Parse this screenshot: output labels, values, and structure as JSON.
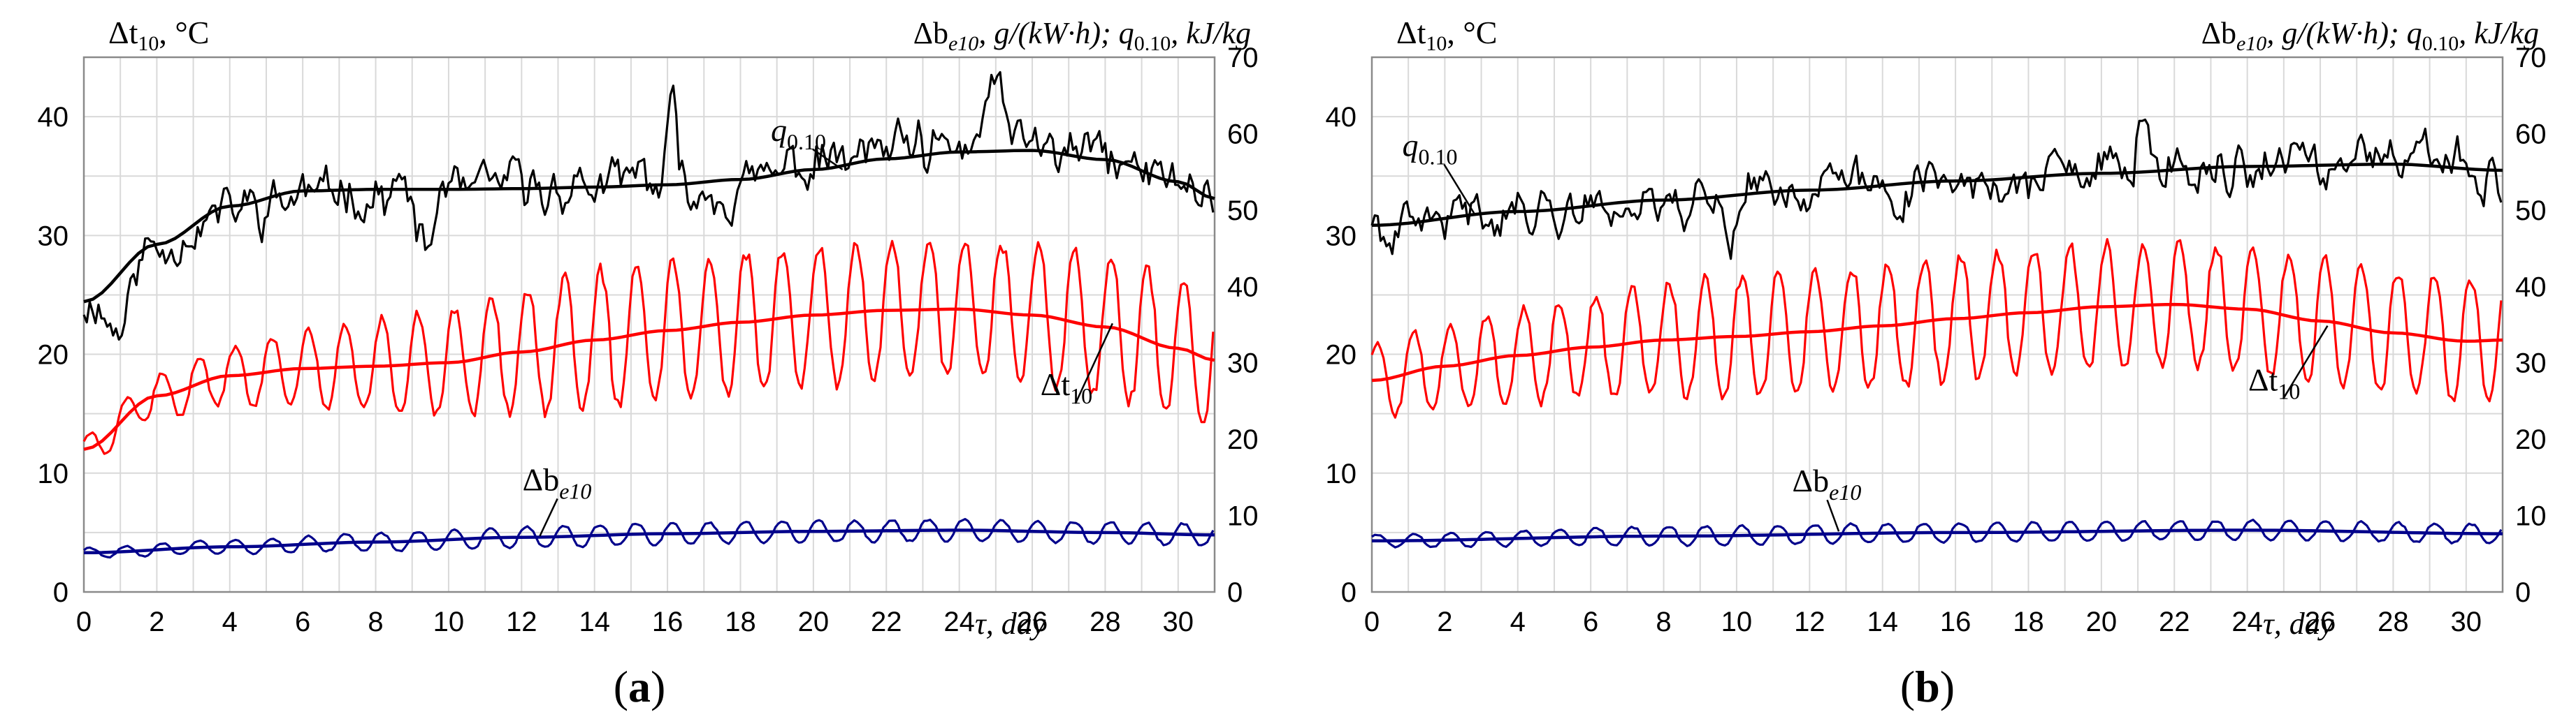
{
  "chart_data": [
    {
      "type": "line",
      "panel": "a",
      "panel_label": "a",
      "left_axis": {
        "symbol": "Δt",
        "sub": "10",
        "unit": ", °C",
        "ylim": [
          0,
          45
        ],
        "ticks": [
          0,
          10,
          20,
          30,
          40
        ]
      },
      "right_axis": {
        "label_parts": [
          "Δb",
          "e10",
          ", g/(kW·h); q",
          "0.10",
          ", kJ/kg"
        ],
        "ylim": [
          0,
          70
        ],
        "ticks": [
          0,
          10,
          20,
          30,
          40,
          50,
          60,
          70
        ]
      },
      "x_axis": {
        "label": "τ, day",
        "xlim": [
          0,
          31
        ],
        "ticks": [
          0,
          2,
          4,
          6,
          8,
          10,
          12,
          14,
          16,
          18,
          20,
          22,
          24,
          26,
          28,
          30
        ]
      },
      "series": [
        {
          "name": "q0.10",
          "label_main": "q",
          "label_sub": "0.10",
          "axis": "right",
          "color": "#000000",
          "trend": [
            [
              0,
              38
            ],
            [
              2,
              45.5
            ],
            [
              4,
              50.5
            ],
            [
              6,
              52.5
            ],
            [
              8,
              52.7
            ],
            [
              10,
              52.7
            ],
            [
              12,
              52.8
            ],
            [
              14,
              53
            ],
            [
              16,
              53.3
            ],
            [
              18,
              54
            ],
            [
              20,
              55.3
            ],
            [
              22,
              56.7
            ],
            [
              24,
              57.6
            ],
            [
              26,
              57.8
            ],
            [
              28,
              56.6
            ],
            [
              30,
              53.7
            ],
            [
              31,
              51.5
            ]
          ],
          "noise": {
            "amp": 4.2,
            "seed": 11,
            "extra": [
              [
                0.4,
                1.5,
                -6
              ],
              [
                8.9,
                9.8,
                -9
              ],
              [
                15.9,
                16.3,
                10
              ],
              [
                24.6,
                25.4,
                11
              ],
              [
                22.9,
                23.3,
                -5
              ]
            ]
          }
        },
        {
          "name": "Δt10",
          "label_main": "Δt",
          "label_sub": "10",
          "axis": "left",
          "color": "#ff0000",
          "trend": [
            [
              0,
              12
            ],
            [
              2,
              16.5
            ],
            [
              4,
              18.2
            ],
            [
              6,
              18.8
            ],
            [
              8,
              19
            ],
            [
              10,
              19.3
            ],
            [
              12,
              20.2
            ],
            [
              14,
              21.2
            ],
            [
              16,
              22
            ],
            [
              18,
              22.7
            ],
            [
              20,
              23.3
            ],
            [
              22,
              23.7
            ],
            [
              24,
              23.8
            ],
            [
              26,
              23.3
            ],
            [
              28,
              22.3
            ],
            [
              30,
              20.5
            ],
            [
              31,
              19.5
            ]
          ],
          "osc": {
            "period": 1,
            "amp_start": 1.2,
            "amp_end": 5.8,
            "ramp_days": 14,
            "seed": 21
          }
        },
        {
          "name": "Δbe10",
          "label_main": "Δb",
          "label_sub": "e10",
          "axis": "left",
          "color": "#00008b",
          "trend": [
            [
              0,
              3.3
            ],
            [
              4,
              3.8
            ],
            [
              8,
              4.2
            ],
            [
              12,
              4.6
            ],
            [
              16,
              4.9
            ],
            [
              20,
              5.1
            ],
            [
              24,
              5.2
            ],
            [
              28,
              5.0
            ],
            [
              31,
              4.8
            ]
          ],
          "osc": {
            "period": 1,
            "amp_start": 0.4,
            "amp_end": 0.9,
            "ramp_days": 12,
            "seed": 31
          }
        }
      ]
    },
    {
      "type": "line",
      "panel": "b",
      "panel_label": "b",
      "left_axis": {
        "symbol": "Δt",
        "sub": "10",
        "unit": ", °C",
        "ylim": [
          0,
          45
        ],
        "ticks": [
          0,
          10,
          20,
          30,
          40
        ]
      },
      "right_axis": {
        "label_parts": [
          "Δb",
          "e10",
          ", g/(kW·h); q",
          "0.10",
          ", kJ/kg"
        ],
        "ylim": [
          0,
          70
        ],
        "ticks": [
          0,
          10,
          20,
          30,
          40,
          50,
          60,
          70
        ]
      },
      "x_axis": {
        "label": "τ, day",
        "xlim": [
          0,
          31
        ],
        "ticks": [
          0,
          2,
          4,
          6,
          8,
          10,
          12,
          14,
          16,
          18,
          20,
          22,
          24,
          26,
          28,
          30
        ]
      },
      "series": [
        {
          "name": "q0.10",
          "label_main": "q",
          "label_sub": "0.10",
          "axis": "right",
          "color": "#000000",
          "trend": [
            [
              0,
              48
            ],
            [
              4,
              49.8
            ],
            [
              8,
              51.3
            ],
            [
              12,
              52.6
            ],
            [
              16,
              53.8
            ],
            [
              20,
              54.8
            ],
            [
              24,
              55.7
            ],
            [
              28,
              56
            ],
            [
              31,
              55.2
            ]
          ],
          "noise": {
            "amp": 3.8,
            "seed": 41,
            "extra": [
              [
                0.3,
                0.9,
                -5
              ],
              [
                9.6,
                10.1,
                -5
              ],
              [
                20.9,
                21.4,
                7
              ],
              [
                23.3,
                23.7,
                -5
              ]
            ]
          }
        },
        {
          "name": "Δt10",
          "label_main": "Δt",
          "label_sub": "10",
          "axis": "left",
          "color": "#ff0000",
          "trend": [
            [
              0,
              17.8
            ],
            [
              2,
              19
            ],
            [
              4,
              19.9
            ],
            [
              6,
              20.6
            ],
            [
              8,
              21.2
            ],
            [
              10,
              21.5
            ],
            [
              12,
              21.9
            ],
            [
              14,
              22.4
            ],
            [
              16,
              23
            ],
            [
              18,
              23.5
            ],
            [
              20,
              24
            ],
            [
              22,
              24.2
            ],
            [
              24,
              23.8
            ],
            [
              26,
              22.8
            ],
            [
              28,
              21.8
            ],
            [
              30,
              21.1
            ],
            [
              31,
              21.2
            ]
          ],
          "osc": {
            "period": 1,
            "amp_start": 3,
            "amp_end": 5.2,
            "ramp_days": 10,
            "seed": 51
          }
        },
        {
          "name": "Δbe10",
          "label_main": "Δb",
          "label_sub": "e10",
          "axis": "left",
          "color": "#00008b",
          "trend": [
            [
              0,
              4.3
            ],
            [
              8,
              4.7
            ],
            [
              16,
              5.0
            ],
            [
              24,
              5.2
            ],
            [
              31,
              4.9
            ]
          ],
          "osc": {
            "period": 1,
            "amp_start": 0.5,
            "amp_end": 0.8,
            "ramp_days": 8,
            "seed": 61
          }
        }
      ]
    }
  ]
}
